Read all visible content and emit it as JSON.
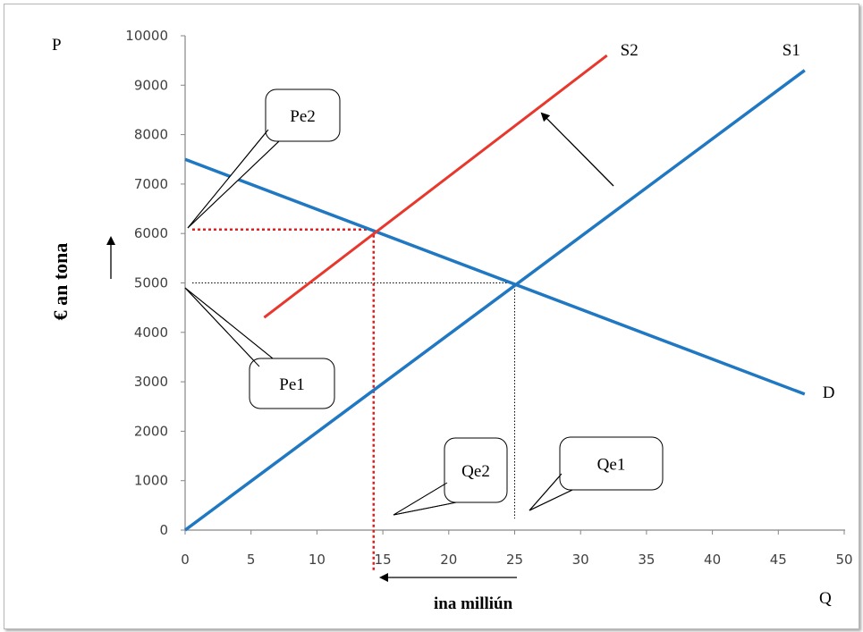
{
  "chart_data": {
    "type": "line",
    "xlabel": "ina milliún",
    "ylabel": "€ an tona",
    "x_axis_letter": "Q",
    "y_axis_letter": "P",
    "xlim": [
      0,
      50
    ],
    "ylim": [
      0,
      10000
    ],
    "xticks": [
      "0",
      "5",
      "10",
      "15",
      "20",
      "25",
      "30",
      "35",
      "40",
      "45",
      "50"
    ],
    "yticks": [
      "0",
      "1000",
      "2000",
      "3000",
      "4000",
      "5000",
      "6000",
      "7000",
      "8000",
      "9000",
      "10000"
    ],
    "grid": false,
    "series": [
      {
        "name": "S1",
        "color": "#1f78c1",
        "points": [
          [
            0,
            0
          ],
          [
            47,
            9300
          ]
        ]
      },
      {
        "name": "D",
        "color": "#1f78c1",
        "points": [
          [
            0,
            7500
          ],
          [
            47,
            2750
          ]
        ]
      },
      {
        "name": "S2",
        "color": "#e8372c",
        "points": [
          [
            6,
            4300
          ],
          [
            32,
            9600
          ]
        ]
      }
    ],
    "equilibria": [
      {
        "x": 14.3,
        "y": 6080,
        "color": "#e02020",
        "style": "dotted"
      },
      {
        "x": 25,
        "y": 5000,
        "color": "#000000",
        "style": "dotted"
      }
    ],
    "callouts": [
      {
        "label": "Pe2",
        "target": [
          0,
          6080
        ]
      },
      {
        "label": "Pe1",
        "target": [
          0,
          5000
        ]
      },
      {
        "label": "Qe2",
        "target": [
          14.3,
          0
        ]
      },
      {
        "label": "Qe1",
        "target": [
          25,
          0
        ]
      }
    ]
  }
}
